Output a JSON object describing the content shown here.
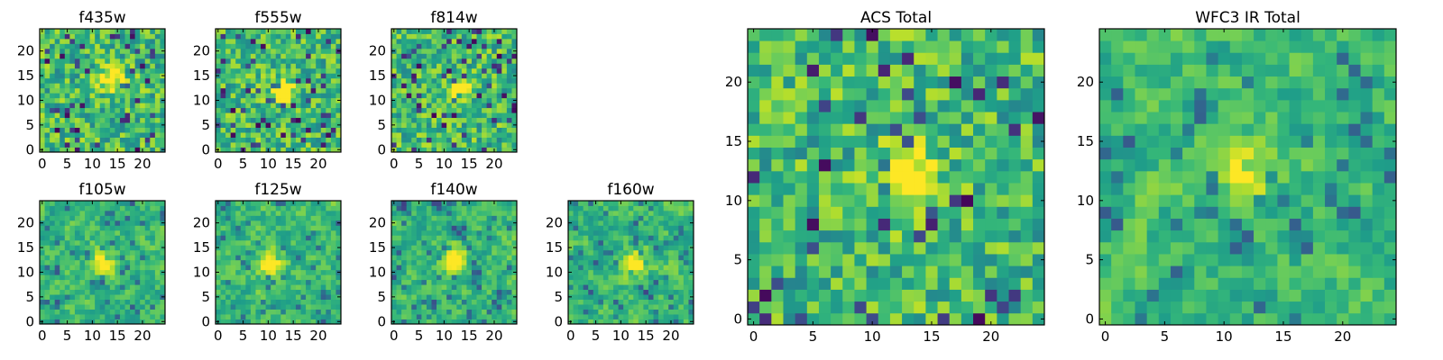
{
  "chart_data": [
    {
      "type": "heatmap",
      "title": "f435w",
      "xlim": [
        0,
        24
      ],
      "ylim": [
        0,
        24
      ],
      "xticks": [
        "0",
        "5",
        "10",
        "15",
        "20"
      ],
      "yticks": [
        "0",
        "5",
        "10",
        "15",
        "20"
      ],
      "grid": false,
      "colormap": "viridis",
      "source_peak": [
        14,
        14
      ],
      "smoothness": 0
    },
    {
      "type": "heatmap",
      "title": "f555w",
      "xlim": [
        0,
        24
      ],
      "ylim": [
        0,
        24
      ],
      "xticks": [
        "0",
        "5",
        "10",
        "15",
        "20"
      ],
      "yticks": [
        "0",
        "5",
        "10",
        "15",
        "20"
      ],
      "grid": false,
      "colormap": "viridis",
      "source_peak": [
        13,
        12
      ],
      "smoothness": 0
    },
    {
      "type": "heatmap",
      "title": "f814w",
      "xlim": [
        0,
        24
      ],
      "ylim": [
        0,
        24
      ],
      "xticks": [
        "0",
        "5",
        "10",
        "15",
        "20"
      ],
      "yticks": [
        "0",
        "5",
        "10",
        "15",
        "20"
      ],
      "grid": false,
      "colormap": "viridis",
      "source_peak": [
        13,
        12
      ],
      "smoothness": 0
    },
    {
      "type": "heatmap",
      "title": "f105w",
      "xlim": [
        0,
        24
      ],
      "ylim": [
        0,
        24
      ],
      "xticks": [
        "0",
        "5",
        "10",
        "15",
        "20"
      ],
      "yticks": [
        "0",
        "5",
        "10",
        "15",
        "20"
      ],
      "grid": false,
      "colormap": "viridis",
      "source_peak": [
        12,
        12
      ],
      "smoothness": 1
    },
    {
      "type": "heatmap",
      "title": "f125w",
      "xlim": [
        0,
        24
      ],
      "ylim": [
        0,
        24
      ],
      "xticks": [
        "0",
        "5",
        "10",
        "15",
        "20"
      ],
      "yticks": [
        "0",
        "5",
        "10",
        "15",
        "20"
      ],
      "grid": false,
      "colormap": "viridis",
      "source_peak": [
        11,
        12
      ],
      "smoothness": 1
    },
    {
      "type": "heatmap",
      "title": "f140w",
      "xlim": [
        0,
        24
      ],
      "ylim": [
        0,
        24
      ],
      "xticks": [
        "0",
        "5",
        "10",
        "15",
        "20"
      ],
      "yticks": [
        "0",
        "5",
        "10",
        "15",
        "20"
      ],
      "grid": false,
      "colormap": "viridis",
      "source_peak": [
        12,
        13
      ],
      "smoothness": 1
    },
    {
      "type": "heatmap",
      "title": "f160w",
      "xlim": [
        0,
        24
      ],
      "ylim": [
        0,
        24
      ],
      "xticks": [
        "0",
        "5",
        "10",
        "15",
        "20"
      ],
      "yticks": [
        "0",
        "5",
        "10",
        "15",
        "20"
      ],
      "grid": false,
      "colormap": "viridis",
      "source_peak": [
        13,
        12
      ],
      "smoothness": 1
    },
    {
      "type": "heatmap",
      "title": "ACS Total",
      "xlim": [
        0,
        24
      ],
      "ylim": [
        0,
        24
      ],
      "xticks": [
        "0",
        "5",
        "10",
        "15",
        "20"
      ],
      "yticks": [
        "0",
        "5",
        "10",
        "15",
        "20"
      ],
      "grid": false,
      "colormap": "viridis",
      "source_peak": [
        13,
        12
      ],
      "smoothness": 0
    },
    {
      "type": "heatmap",
      "title": "WFC3 IR Total",
      "xlim": [
        0,
        24
      ],
      "ylim": [
        0,
        24
      ],
      "xticks": [
        "0",
        "5",
        "10",
        "15",
        "20"
      ],
      "yticks": [
        "0",
        "5",
        "10",
        "15",
        "20"
      ],
      "grid": false,
      "colormap": "viridis",
      "source_peak": [
        12,
        12
      ],
      "smoothness": 1
    }
  ]
}
